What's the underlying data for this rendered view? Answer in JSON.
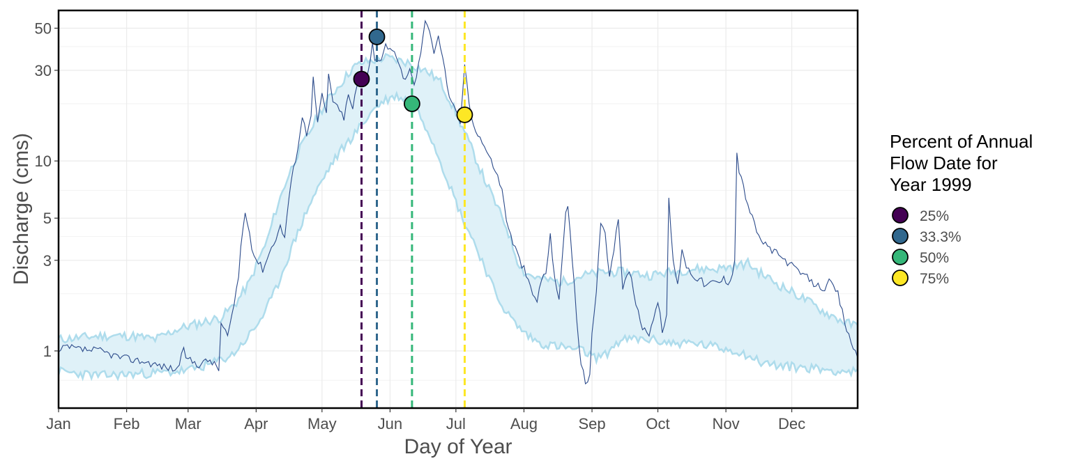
{
  "chart_data": {
    "type": "line",
    "title": "",
    "xlabel": "Day of Year",
    "ylabel": "Discharge (cms)",
    "y_scale": "log",
    "ylim": [
      0.5,
      62
    ],
    "xlim": [
      1,
      365
    ],
    "grid": true,
    "x_ticks": [
      {
        "day": 1,
        "label": "Jan"
      },
      {
        "day": 32,
        "label": "Feb"
      },
      {
        "day": 60,
        "label": "Mar"
      },
      {
        "day": 91,
        "label": "Apr"
      },
      {
        "day": 121,
        "label": "May"
      },
      {
        "day": 152,
        "label": "Jun"
      },
      {
        "day": 182,
        "label": "Jul"
      },
      {
        "day": 213,
        "label": "Aug"
      },
      {
        "day": 244,
        "label": "Sep"
      },
      {
        "day": 274,
        "label": "Oct"
      },
      {
        "day": 305,
        "label": "Nov"
      },
      {
        "day": 335,
        "label": "Dec"
      }
    ],
    "y_ticks": [
      {
        "value": 1,
        "label": "1"
      },
      {
        "value": 3,
        "label": "3"
      },
      {
        "value": 5,
        "label": "5"
      },
      {
        "value": 10,
        "label": "10"
      },
      {
        "value": 30,
        "label": "30"
      },
      {
        "value": 50,
        "label": "50"
      }
    ],
    "band": {
      "fill": "#dff1f8",
      "stroke": "#aedcec",
      "knots_upper": [
        [
          1,
          1.15
        ],
        [
          20,
          1.2
        ],
        [
          35,
          1.2
        ],
        [
          45,
          1.15
        ],
        [
          55,
          1.3
        ],
        [
          65,
          1.4
        ],
        [
          75,
          1.5
        ],
        [
          82,
          1.8
        ],
        [
          88,
          2.3
        ],
        [
          92,
          3
        ],
        [
          96,
          3.8
        ],
        [
          100,
          5.5
        ],
        [
          105,
          8
        ],
        [
          110,
          11
        ],
        [
          115,
          14
        ],
        [
          120,
          18
        ],
        [
          125,
          22
        ],
        [
          130,
          26
        ],
        [
          135,
          31
        ],
        [
          140,
          33
        ],
        [
          145,
          34
        ],
        [
          150,
          35
        ],
        [
          155,
          34
        ],
        [
          160,
          33
        ],
        [
          165,
          31
        ],
        [
          170,
          29
        ],
        [
          175,
          26
        ],
        [
          180,
          20
        ],
        [
          185,
          15
        ],
        [
          190,
          11
        ],
        [
          195,
          8
        ],
        [
          200,
          6
        ],
        [
          205,
          4.5
        ],
        [
          210,
          3
        ],
        [
          213,
          2.6
        ],
        [
          220,
          2.4
        ],
        [
          230,
          2.3
        ],
        [
          240,
          2.5
        ],
        [
          250,
          2.6
        ],
        [
          260,
          2.6
        ],
        [
          270,
          2.5
        ],
        [
          280,
          2.6
        ],
        [
          290,
          2.7
        ],
        [
          300,
          2.7
        ],
        [
          310,
          2.8
        ],
        [
          315,
          2.9
        ],
        [
          320,
          2.6
        ],
        [
          330,
          2.2
        ],
        [
          340,
          1.9
        ],
        [
          350,
          1.6
        ],
        [
          360,
          1.4
        ],
        [
          365,
          1.35
        ]
      ],
      "knots_lower": [
        [
          1,
          0.78
        ],
        [
          10,
          0.76
        ],
        [
          20,
          0.74
        ],
        [
          30,
          0.75
        ],
        [
          40,
          0.76
        ],
        [
          50,
          0.77
        ],
        [
          60,
          0.79
        ],
        [
          70,
          0.85
        ],
        [
          80,
          0.95
        ],
        [
          85,
          1.1
        ],
        [
          90,
          1.3
        ],
        [
          95,
          1.6
        ],
        [
          100,
          2.1
        ],
        [
          105,
          3
        ],
        [
          110,
          4.2
        ],
        [
          115,
          5.8
        ],
        [
          120,
          7.5
        ],
        [
          125,
          9.5
        ],
        [
          130,
          11.5
        ],
        [
          135,
          13.5
        ],
        [
          140,
          16
        ],
        [
          145,
          19
        ],
        [
          150,
          21
        ],
        [
          155,
          22
        ],
        [
          160,
          21
        ],
        [
          165,
          18
        ],
        [
          170,
          14
        ],
        [
          175,
          10
        ],
        [
          180,
          7
        ],
        [
          185,
          5
        ],
        [
          190,
          3.8
        ],
        [
          195,
          2.8
        ],
        [
          200,
          2
        ],
        [
          205,
          1.6
        ],
        [
          210,
          1.35
        ],
        [
          215,
          1.2
        ],
        [
          220,
          1.1
        ],
        [
          230,
          1.05
        ],
        [
          240,
          1.0
        ],
        [
          245,
          0.92
        ],
        [
          250,
          0.95
        ],
        [
          255,
          1.1
        ],
        [
          260,
          1.15
        ],
        [
          270,
          1.15
        ],
        [
          280,
          1.1
        ],
        [
          290,
          1.1
        ],
        [
          300,
          1.05
        ],
        [
          310,
          1.0
        ],
        [
          315,
          0.95
        ],
        [
          320,
          0.88
        ],
        [
          330,
          0.83
        ],
        [
          340,
          0.82
        ],
        [
          350,
          0.8
        ],
        [
          360,
          0.78
        ],
        [
          365,
          0.77
        ]
      ]
    },
    "series": [
      {
        "color": "#2b4a8a",
        "knots": [
          [
            1,
            0.97
          ],
          [
            4,
            1.05
          ],
          [
            10,
            1.02
          ],
          [
            20,
            1.0
          ],
          [
            30,
            0.92
          ],
          [
            40,
            0.88
          ],
          [
            45,
            0.85
          ],
          [
            50,
            0.82
          ],
          [
            55,
            0.8
          ],
          [
            58,
            1.0
          ],
          [
            60,
            0.9
          ],
          [
            65,
            0.85
          ],
          [
            70,
            0.9
          ],
          [
            74,
            0.8
          ],
          [
            75,
            1.4
          ],
          [
            78,
            1.2
          ],
          [
            80,
            1.5
          ],
          [
            83,
            2.5
          ],
          [
            84,
            3.5
          ],
          [
            86,
            5.5
          ],
          [
            88,
            4
          ],
          [
            90,
            3.2
          ],
          [
            94,
            2.7
          ],
          [
            98,
            3.5
          ],
          [
            102,
            4.5
          ],
          [
            104,
            4
          ],
          [
            106,
            6.5
          ],
          [
            108,
            9
          ],
          [
            110,
            12
          ],
          [
            112,
            17
          ],
          [
            114,
            14
          ],
          [
            116,
            18
          ],
          [
            117,
            27
          ],
          [
            119,
            16
          ],
          [
            121,
            22
          ],
          [
            123,
            18
          ],
          [
            124,
            28
          ],
          [
            126,
            21
          ],
          [
            128,
            19
          ],
          [
            131,
            17
          ],
          [
            133,
            22
          ],
          [
            135,
            19
          ],
          [
            137,
            25
          ],
          [
            139,
            30
          ],
          [
            141,
            27
          ],
          [
            143,
            35
          ],
          [
            144,
            42
          ],
          [
            145,
            35
          ],
          [
            147,
            33
          ],
          [
            149,
            38
          ],
          [
            150,
            42
          ],
          [
            152,
            38
          ],
          [
            155,
            35
          ],
          [
            158,
            27
          ],
          [
            161,
            30
          ],
          [
            163,
            25
          ],
          [
            165,
            32
          ],
          [
            167,
            45
          ],
          [
            168,
            53
          ],
          [
            170,
            50
          ],
          [
            172,
            38
          ],
          [
            174,
            46
          ],
          [
            176,
            35
          ],
          [
            178,
            25
          ],
          [
            180,
            20
          ],
          [
            182,
            18
          ],
          [
            184,
            16
          ],
          [
            185,
            22
          ],
          [
            186,
            33
          ],
          [
            187,
            25
          ],
          [
            189,
            17
          ],
          [
            192,
            14
          ],
          [
            195,
            12
          ],
          [
            198,
            10
          ],
          [
            200,
            9
          ],
          [
            203,
            7
          ],
          [
            205,
            5
          ],
          [
            207,
            4
          ],
          [
            209,
            3.5
          ],
          [
            211,
            3
          ],
          [
            213,
            2.7
          ],
          [
            215,
            2.3
          ],
          [
            217,
            2.0
          ],
          [
            219,
            1.8
          ],
          [
            220,
            2.2
          ],
          [
            223,
            2.6
          ],
          [
            225,
            4
          ],
          [
            227,
            2.5
          ],
          [
            229,
            1.8
          ],
          [
            232,
            5.5
          ],
          [
            233,
            6
          ],
          [
            235,
            3
          ],
          [
            237,
            1.5
          ],
          [
            239,
            0.85
          ],
          [
            241,
            0.68
          ],
          [
            243,
            0.72
          ],
          [
            244,
            1.2
          ],
          [
            246,
            2
          ],
          [
            248,
            4.8
          ],
          [
            250,
            4
          ],
          [
            252,
            2.5
          ],
          [
            254,
            3.5
          ],
          [
            256,
            4.8
          ],
          [
            258,
            2.2
          ],
          [
            260,
            2.6
          ],
          [
            262,
            2.4
          ],
          [
            264,
            1.8
          ],
          [
            266,
            1.4
          ],
          [
            268,
            1.3
          ],
          [
            270,
            1.25
          ],
          [
            272,
            1.5
          ],
          [
            274,
            1.8
          ],
          [
            276,
            1.3
          ],
          [
            278,
            1.5
          ],
          [
            279,
            6.2
          ],
          [
            281,
            3
          ],
          [
            283,
            2.2
          ],
          [
            285,
            3.5
          ],
          [
            287,
            2.8
          ],
          [
            290,
            2.5
          ],
          [
            293,
            2.4
          ],
          [
            296,
            2.2
          ],
          [
            299,
            2.3
          ],
          [
            302,
            2.3
          ],
          [
            304,
            2.4
          ],
          [
            306,
            2.3
          ],
          [
            308,
            2.6
          ],
          [
            309,
            3
          ],
          [
            310,
            11
          ],
          [
            311,
            9
          ],
          [
            314,
            6.5
          ],
          [
            317,
            5
          ],
          [
            320,
            4
          ],
          [
            323,
            3.6
          ],
          [
            326,
            3.4
          ],
          [
            329,
            3.2
          ],
          [
            332,
            3.0
          ],
          [
            335,
            2.8
          ],
          [
            338,
            2.6
          ],
          [
            341,
            2.5
          ],
          [
            344,
            2.3
          ],
          [
            347,
            2.2
          ],
          [
            350,
            2.15
          ],
          [
            352,
            2.3
          ],
          [
            354,
            2.15
          ],
          [
            356,
            2.0
          ],
          [
            358,
            1.6
          ],
          [
            360,
            1.3
          ],
          [
            362,
            1.1
          ],
          [
            364,
            1.0
          ],
          [
            365,
            0.95
          ]
        ]
      }
    ],
    "markers": [
      {
        "label": "25%",
        "day": 139,
        "value": 27,
        "color": "#440154"
      },
      {
        "label": "33.3%",
        "day": 146,
        "value": 45,
        "color": "#31688e"
      },
      {
        "label": "50%",
        "day": 162,
        "value": 20,
        "color": "#35b779"
      },
      {
        "label": "75%",
        "day": 186,
        "value": 17.5,
        "color": "#fde725"
      }
    ],
    "legend": {
      "title_lines": [
        "Percent of Annual",
        "Flow Date for",
        "Year 1999"
      ],
      "placement": "right"
    }
  }
}
